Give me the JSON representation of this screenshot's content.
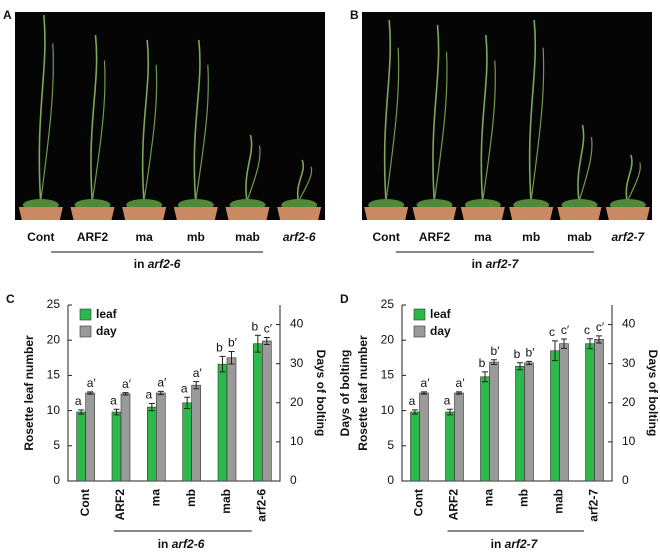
{
  "panels": [
    {
      "label": "A",
      "labels": [
        "Cont",
        "ARF2",
        "ma",
        "mb",
        "mab",
        "arf2-6"
      ],
      "group": [
        "in",
        "arf2-6"
      ]
    },
    {
      "label": "B",
      "labels": [
        "Cont",
        "ARF2",
        "ma",
        "mb",
        "mab",
        "arf2-7"
      ],
      "group": [
        "in",
        "arf2-7"
      ]
    }
  ],
  "chart_data": [
    {
      "type": "bar",
      "panel": "C",
      "ylabel": [
        "Rosette leaf number"
      ],
      "y2label": "Days of bolting",
      "categories": [
        "Cont",
        "ARF2",
        "ma",
        "mb",
        "mab",
        "arf2-6"
      ],
      "group": [
        "in",
        "arf2-6"
      ],
      "ylim": [
        0,
        25
      ],
      "yticks": [
        0,
        5,
        10,
        15,
        20,
        25
      ],
      "y2lim": [
        0,
        45
      ],
      "y2ticks": [
        0,
        10,
        20,
        30,
        40
      ],
      "legend": "top-left",
      "series": [
        {
          "name": "leaf",
          "color": "#2cb84a",
          "values": [
            9.8,
            9.8,
            10.5,
            11.1,
            16.6,
            19.5
          ],
          "errors": [
            0.3,
            0.4,
            0.5,
            0.8,
            1.1,
            1.2
          ],
          "letters": [
            "a",
            "a",
            "a",
            "a",
            "b",
            "b"
          ]
        },
        {
          "name": "day",
          "color": "#9a9a9a",
          "axis": "y2",
          "values": [
            22.5,
            22.3,
            22.5,
            24.5,
            31.5,
            35.8
          ],
          "errors": [
            0.3,
            0.3,
            0.4,
            0.9,
            1.6,
            0.9
          ],
          "letters": [
            "a′",
            "a′",
            "a′",
            "a′",
            "b′",
            "c′"
          ]
        }
      ]
    },
    {
      "type": "bar",
      "panel": "D",
      "ylabel": [
        "Days of bolting",
        "Rosette leaf number"
      ],
      "y2label": "Days of bolting",
      "categories": [
        "Cont",
        "ARF2",
        "ma",
        "mb",
        "mab",
        "arf2-7"
      ],
      "group": [
        "in",
        "arf2-7"
      ],
      "ylim": [
        0,
        25
      ],
      "yticks": [
        0,
        5,
        10,
        15,
        20,
        25
      ],
      "y2lim": [
        0,
        45
      ],
      "y2ticks": [
        0,
        10,
        20,
        30,
        40
      ],
      "legend": "top-left",
      "series": [
        {
          "name": "leaf",
          "color": "#2cb84a",
          "values": [
            9.8,
            9.8,
            14.8,
            16.3,
            18.5,
            19.5
          ],
          "errors": [
            0.3,
            0.4,
            0.7,
            0.5,
            1.4,
            0.7
          ],
          "letters": [
            "a",
            "a",
            "b",
            "b",
            "c",
            "c"
          ]
        },
        {
          "name": "day",
          "color": "#9a9a9a",
          "axis": "y2",
          "values": [
            22.5,
            22.5,
            30.4,
            30.2,
            35.1,
            36.2
          ],
          "errors": [
            0.3,
            0.3,
            0.6,
            0.4,
            1.2,
            0.9
          ],
          "letters": [
            "a′",
            "a′",
            "b′",
            "b′",
            "c′",
            "c′"
          ]
        }
      ]
    }
  ]
}
